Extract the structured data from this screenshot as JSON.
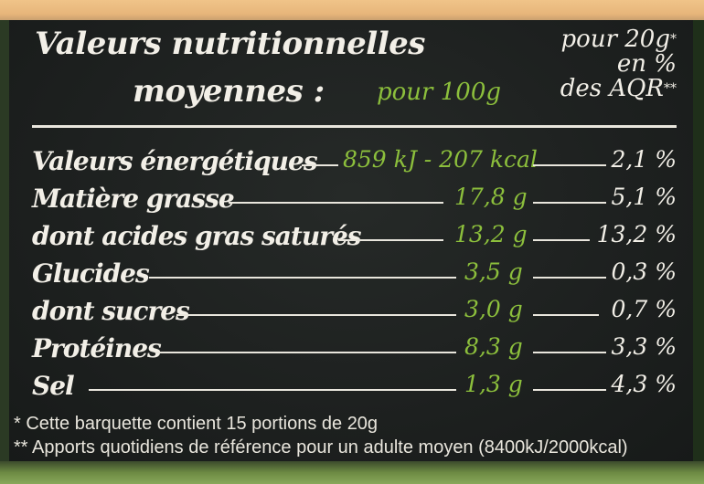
{
  "panel": {
    "title_line1": "Valeurs nutritionnelles",
    "title_line2": "moyennes :",
    "col_100g": "pour 100g",
    "col_20g_line1": "pour 20g",
    "col_20g_line2": "en %",
    "col_20g_line3": "des AQR",
    "col_20g_ast1": "*",
    "col_20g_ast2": "**",
    "accent_green": "#8cbf3c"
  },
  "rows": [
    {
      "label": "Valeurs énergétiques",
      "per_100g": "859 kJ - 207 kcal",
      "pct_20g": "2,1 %"
    },
    {
      "label": "Matière grasse",
      "per_100g": "17,8 g",
      "pct_20g": "5,1 %"
    },
    {
      "label": "dont acides gras saturés",
      "per_100g": "13,2 g",
      "pct_20g": "13,2 %"
    },
    {
      "label": "Glucides",
      "per_100g": "3,5 g",
      "pct_20g": "0,3 %"
    },
    {
      "label": "dont sucres",
      "per_100g": "3,0 g",
      "pct_20g": "0,7 %"
    },
    {
      "label": "Protéines",
      "per_100g": "8,3 g",
      "pct_20g": "3,3 %"
    },
    {
      "label": "Sel",
      "per_100g": "1,3 g",
      "pct_20g": "4,3 %"
    }
  ],
  "footnotes": {
    "note1": "* Cette barquette contient 15 portions de 20g",
    "note2": "** Apports quotidiens de référence pour un adulte moyen (8400kJ/2000kcal)"
  }
}
